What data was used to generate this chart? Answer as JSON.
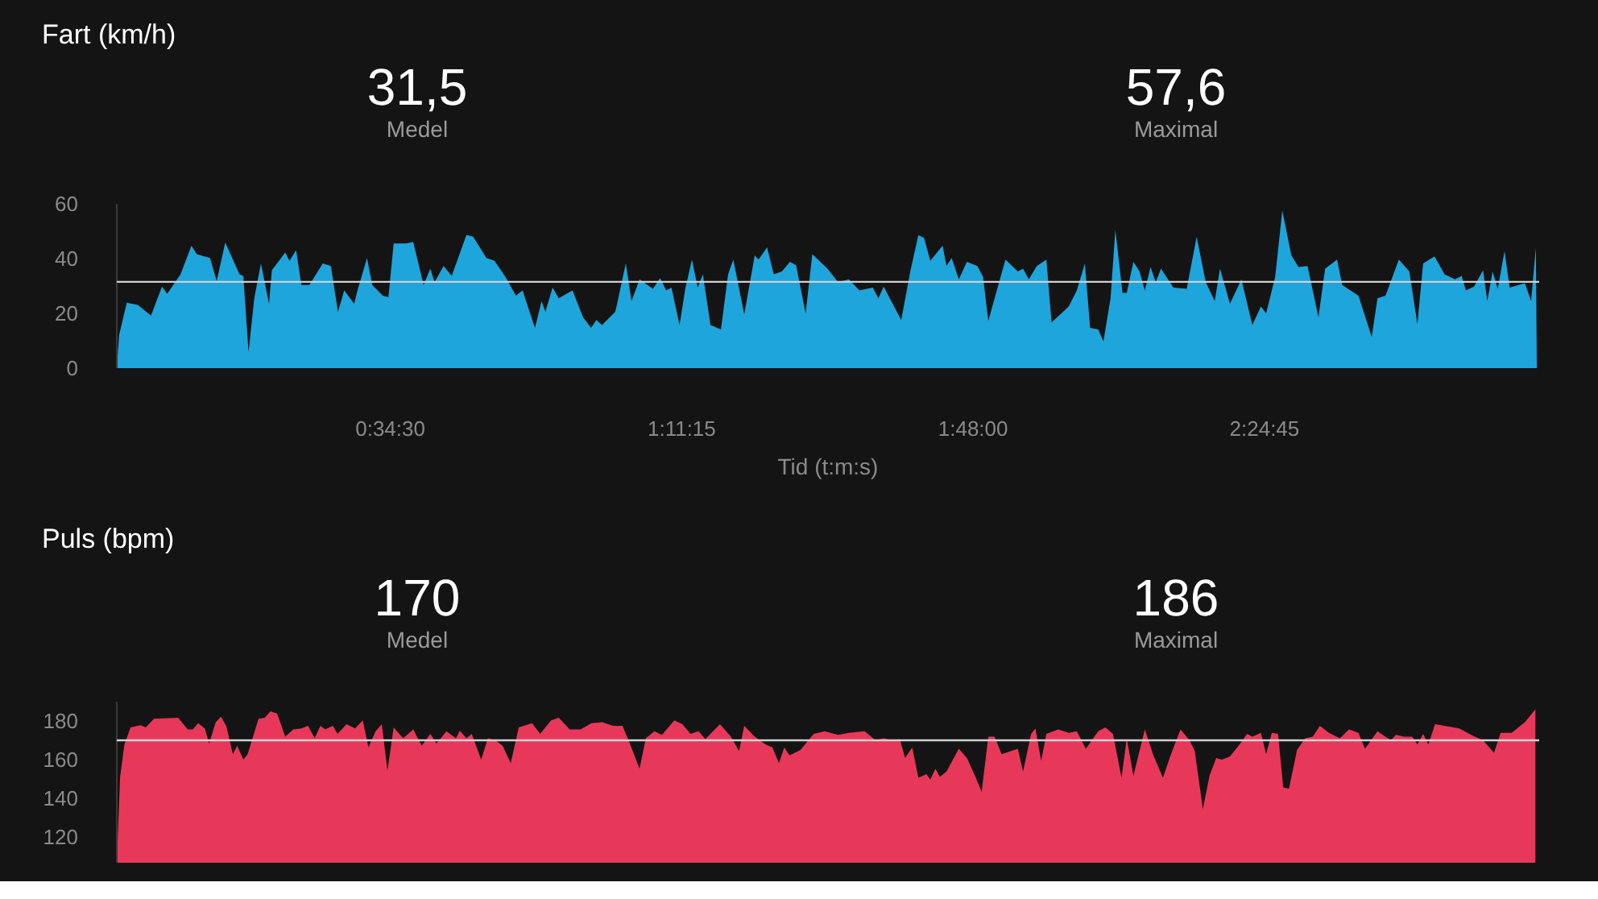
{
  "chart_data": [
    {
      "type": "area",
      "title": "Fart (km/h)",
      "annotations": [
        "31,5",
        "Medel",
        "57,6",
        "Maximal"
      ],
      "xlabel": "Tid (t:m:s)",
      "color": "#1ea5dc",
      "xlim": [
        0,
        2.99
      ],
      "xticks": [
        {
          "value": 0.575,
          "label": "0:34:30"
        },
        {
          "value": 1.1875,
          "label": "1:11:15"
        },
        {
          "value": 1.8,
          "label": "1:48:00"
        },
        {
          "value": 2.4125,
          "label": "2:24:45"
        }
      ],
      "ylim": [
        0,
        60
      ],
      "yticks": [
        0,
        20,
        40,
        60
      ],
      "grid": false,
      "ref_lines": [
        {
          "axis": "y",
          "value": 31.5,
          "color": "#d0d0d0"
        }
      ],
      "x": [
        0,
        0.005,
        0.021,
        0.044,
        0.072,
        0.095,
        0.106,
        0.134,
        0.157,
        0.168,
        0.196,
        0.21,
        0.228,
        0.258,
        0.266,
        0.277,
        0.289,
        0.303,
        0.32,
        0.326,
        0.354,
        0.363,
        0.377,
        0.388,
        0.405,
        0.433,
        0.45,
        0.465,
        0.478,
        0.499,
        0.506,
        0.526,
        0.537,
        0.559,
        0.571,
        0.582,
        0.608,
        0.623,
        0.645,
        0.659,
        0.668,
        0.687,
        0.704,
        0.735,
        0.749,
        0.777,
        0.794,
        0.817,
        0.839,
        0.853,
        0.879,
        0.893,
        0.901,
        0.916,
        0.929,
        0.958,
        0.98,
        0.997,
        1.008,
        1.02,
        1.048,
        1.07,
        1.082,
        1.099,
        1.127,
        1.142,
        1.155,
        1.166,
        1.183,
        1.195,
        1.209,
        1.221,
        1.232,
        1.248,
        1.27,
        1.285,
        1.296,
        1.319,
        1.341,
        1.349,
        1.367,
        1.381,
        1.398,
        1.415,
        1.428,
        1.448,
        1.462,
        1.494,
        1.516,
        1.539,
        1.561,
        1.589,
        1.601,
        1.612,
        1.649,
        1.668,
        1.685,
        1.697,
        1.71,
        1.736,
        1.744,
        1.755,
        1.77,
        1.787,
        1.809,
        1.821,
        1.832,
        1.868,
        1.894,
        1.905,
        1.917,
        1.934,
        1.954,
        1.965,
        2.001,
        2.018,
        2.035,
        2.046,
        2.063,
        2.074,
        2.089,
        2.099,
        2.114,
        2.123,
        2.137,
        2.15,
        2.161,
        2.173,
        2.184,
        2.195,
        2.221,
        2.249,
        2.27,
        2.289,
        2.308,
        2.319,
        2.34,
        2.364,
        2.387,
        2.405,
        2.416,
        2.435,
        2.45,
        2.469,
        2.484,
        2.503,
        2.526,
        2.54,
        2.565,
        2.576,
        2.593,
        2.61,
        2.638,
        2.65,
        2.667,
        2.695,
        2.717,
        2.734,
        2.746,
        2.77,
        2.791,
        2.813,
        2.827,
        2.836,
        2.853,
        2.872,
        2.881,
        2.892,
        2.903,
        2.917,
        2.928,
        2.96,
        2.973,
        2.983,
        2.985
      ],
      "values": [
        0,
        12.2,
        23.9,
        23.1,
        19.2,
        29.8,
        27.1,
        34.3,
        44.7,
        41.6,
        40.2,
        31.8,
        45.9,
        34.3,
        33.7,
        5.9,
        25.5,
        38.2,
        23.5,
        35.7,
        42.2,
        39.2,
        43.1,
        30.4,
        30.4,
        38.2,
        37.3,
        20.6,
        28.4,
        23.5,
        28.4,
        40.2,
        30.4,
        26.5,
        25.9,
        45.5,
        45.5,
        46.1,
        30.4,
        36.3,
        31.4,
        37.3,
        33.7,
        48.6,
        48.0,
        40.2,
        39.2,
        33.3,
        26.5,
        28.4,
        14.7,
        24.5,
        20.6,
        29.4,
        25.5,
        28.4,
        18.6,
        14.7,
        17.6,
        15.7,
        20.6,
        38.2,
        24.5,
        32.4,
        29.0,
        32.9,
        28.4,
        29.4,
        15.7,
        29.0,
        39.6,
        29.4,
        34.3,
        15.7,
        14.1,
        34.3,
        39.6,
        19.6,
        41.2,
        39.6,
        44.1,
        34.3,
        35.3,
        38.8,
        37.6,
        20.0,
        41.6,
        36.3,
        31.4,
        32.4,
        28.4,
        29.4,
        25.5,
        29.8,
        17.6,
        35.3,
        48.6,
        47.5,
        39.2,
        44.7,
        37.3,
        40.2,
        32.4,
        38.8,
        37.3,
        33.3,
        17.3,
        39.6,
        35.3,
        36.3,
        32.4,
        37.3,
        39.6,
        16.7,
        22.5,
        28.4,
        38.2,
        14.7,
        14.1,
        9.8,
        25.5,
        50.6,
        27.5,
        27.5,
        38.8,
        35.3,
        28.4,
        36.9,
        31.4,
        36.3,
        29.4,
        29.0,
        48.0,
        31.4,
        24.5,
        36.3,
        23.5,
        32.4,
        15.7,
        22.5,
        20.0,
        33.3,
        57.6,
        41.2,
        36.9,
        37.3,
        18.6,
        36.3,
        39.6,
        30.4,
        28.4,
        26.5,
        11.4,
        25.5,
        26.5,
        39.6,
        35.3,
        16.1,
        38.2,
        40.8,
        34.3,
        32.4,
        33.7,
        28.4,
        29.8,
        35.7,
        24.5,
        35.3,
        29.0,
        42.7,
        29.4,
        31.0,
        24.5,
        44.1,
        0
      ]
    },
    {
      "type": "area",
      "title": "Puls (bpm)",
      "annotations": [
        "170",
        "Medel",
        "186",
        "Maximal"
      ],
      "color": "#e8385a",
      "tick_labels": "y",
      "xlim": [
        0,
        2.99
      ],
      "ylim": [
        106.7,
        190
      ],
      "yticks": [
        120,
        140,
        160,
        180
      ],
      "grid": false,
      "ref_lines": [
        {
          "axis": "y",
          "value": 170,
          "color": "#d0d0d0"
        }
      ],
      "x": [
        0,
        0.007,
        0.016,
        0.029,
        0.05,
        0.061,
        0.078,
        0.129,
        0.149,
        0.16,
        0.171,
        0.185,
        0.194,
        0.208,
        0.219,
        0.23,
        0.244,
        0.253,
        0.266,
        0.275,
        0.298,
        0.311,
        0.323,
        0.337,
        0.354,
        0.371,
        0.388,
        0.402,
        0.416,
        0.428,
        0.438,
        0.454,
        0.464,
        0.483,
        0.501,
        0.517,
        0.529,
        0.544,
        0.557,
        0.569,
        0.582,
        0.602,
        0.623,
        0.641,
        0.659,
        0.672,
        0.693,
        0.713,
        0.721,
        0.735,
        0.746,
        0.766,
        0.78,
        0.796,
        0.811,
        0.828,
        0.845,
        0.873,
        0.89,
        0.913,
        0.929,
        0.952,
        0.975,
        0.998,
        1.02,
        1.043,
        1.063,
        1.077,
        1.099,
        1.112,
        1.13,
        1.146,
        1.172,
        1.189,
        1.206,
        1.223,
        1.237,
        1.268,
        1.291,
        1.308,
        1.319,
        1.341,
        1.364,
        1.378,
        1.392,
        1.403,
        1.414,
        1.437,
        1.465,
        1.488,
        1.516,
        1.539,
        1.572,
        1.595,
        1.612,
        1.629,
        1.646,
        1.657,
        1.672,
        1.685,
        1.702,
        1.71,
        1.721,
        1.73,
        1.744,
        1.77,
        1.787,
        1.804,
        1.818,
        1.832,
        1.845,
        1.86,
        1.879,
        1.894,
        1.905,
        1.922,
        1.931,
        1.943,
        1.954,
        1.979,
        2.001,
        2.018,
        2.037,
        2.063,
        2.078,
        2.094,
        2.112,
        2.123,
        2.137,
        2.161,
        2.179,
        2.199,
        2.216,
        2.236,
        2.255,
        2.266,
        2.283,
        2.297,
        2.311,
        2.323,
        2.34,
        2.36,
        2.376,
        2.387,
        2.405,
        2.416,
        2.428,
        2.441,
        2.452,
        2.464,
        2.481,
        2.498,
        2.514,
        2.529,
        2.548,
        2.571,
        2.59,
        2.61,
        2.624,
        2.65,
        2.678,
        2.689,
        2.706,
        2.723,
        2.734,
        2.746,
        2.757,
        2.771,
        2.791,
        2.822,
        2.847,
        2.872,
        2.895,
        2.909,
        2.932,
        2.96,
        2.982
      ],
      "values": [
        106.7,
        151.1,
        167.8,
        176.7,
        177.8,
        176.7,
        181.1,
        181.7,
        175.6,
        175.6,
        178.9,
        176.1,
        168.3,
        179.4,
        182.2,
        177.5,
        162.8,
        167.2,
        160.0,
        162.8,
        181.1,
        181.7,
        185.0,
        183.9,
        171.9,
        175.6,
        176.1,
        177.5,
        171.1,
        177.5,
        175.6,
        177.5,
        173.3,
        178.3,
        176.1,
        180.3,
        166.4,
        174.7,
        178.3,
        154.4,
        176.7,
        171.1,
        175.6,
        167.2,
        173.3,
        168.3,
        174.7,
        171.1,
        175.0,
        171.1,
        173.3,
        160.0,
        171.1,
        170.0,
        167.2,
        158.1,
        176.7,
        178.9,
        173.3,
        180.3,
        181.7,
        175.6,
        175.6,
        178.9,
        179.4,
        177.5,
        177.5,
        169.2,
        155.3,
        171.1,
        174.7,
        172.8,
        180.3,
        178.3,
        173.3,
        174.7,
        170.6,
        178.3,
        171.9,
        164.4,
        177.5,
        171.9,
        167.8,
        166.4,
        158.1,
        166.4,
        162.2,
        165.0,
        173.3,
        174.7,
        172.8,
        173.9,
        174.7,
        170.0,
        171.1,
        170.0,
        170.6,
        160.8,
        166.4,
        150.6,
        152.5,
        149.7,
        155.3,
        151.1,
        153.9,
        165.6,
        160.8,
        151.7,
        143.3,
        171.9,
        171.9,
        162.8,
        164.4,
        165.6,
        153.9,
        173.3,
        176.1,
        159.4,
        173.3,
        175.6,
        173.9,
        174.7,
        165.6,
        174.7,
        176.7,
        173.3,
        150.6,
        171.1,
        151.7,
        175.6,
        162.2,
        150.6,
        162.8,
        175.6,
        170.0,
        164.4,
        134.4,
        151.7,
        160.8,
        160.0,
        161.7,
        167.8,
        173.3,
        171.9,
        173.9,
        162.8,
        173.9,
        173.3,
        145.6,
        145.0,
        165.0,
        171.1,
        171.9,
        177.5,
        173.9,
        171.1,
        175.6,
        173.9,
        165.6,
        174.7,
        170.0,
        172.8,
        171.9,
        171.9,
        167.8,
        173.3,
        167.8,
        178.3,
        177.5,
        176.1,
        172.8,
        170.0,
        163.6,
        173.9,
        173.9,
        179.4,
        186
      ]
    }
  ]
}
